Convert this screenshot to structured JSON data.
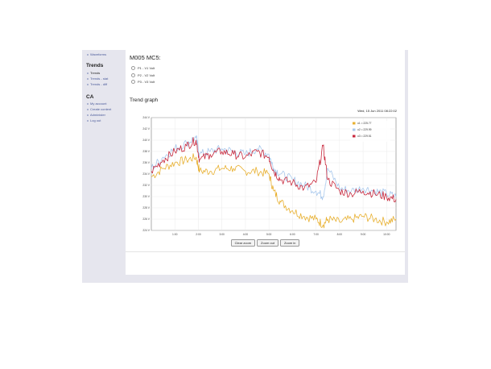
{
  "sidebar": {
    "top_item": "Waveforms",
    "trends_heading": "Trends",
    "trends_items": [
      "Trends",
      "Trends - stat",
      "Trends - diff"
    ],
    "ca_heading": "CA",
    "ca_items": [
      "My account",
      "Create content",
      "Administer",
      "Log out"
    ]
  },
  "page": {
    "title": "M005 MC5:",
    "options": [
      "P1 - V1 Volt",
      "P2 - V2 Volt",
      "P3 - V3 Volt"
    ],
    "section_title": "Trend graph",
    "date_label": "Wed, 15 Jun 2011 08:22:02"
  },
  "buttons": {
    "clear_zoom": "Clear zoom",
    "zoom_out": "Zoom out",
    "zoom_in": "Zoom in"
  },
  "colors": {
    "u1": "#e8b030",
    "u2": "#a8c8ec",
    "u3": "#c8283c"
  },
  "chart_data": {
    "type": "line",
    "legend_position": "top-right",
    "grid": true,
    "xlabel": "",
    "ylabel": "",
    "x_ticks": [
      "1:00",
      "2:00",
      "3:00",
      "4:00",
      "5:00",
      "6:00",
      "7:00",
      "8:00",
      "9:00",
      "10:00"
    ],
    "y_ticks": [
      "224 V",
      "226 V",
      "228 V",
      "230 V",
      "232 V",
      "234 V",
      "236 V",
      "238 V",
      "240 V",
      "242 V",
      "244 V"
    ],
    "xlim": [
      0,
      10.4
    ],
    "ylim": [
      224,
      244
    ],
    "x": [
      0,
      0.5,
      1,
      1.5,
      1.9,
      2.05,
      2.5,
      3,
      3.5,
      4,
      4.5,
      5,
      5.2,
      5.5,
      6,
      6.5,
      7,
      7.3,
      7.5,
      8,
      8.5,
      9,
      9.5,
      10,
      10.4
    ],
    "series": [
      {
        "name": "u1 = 225.77",
        "values": [
          233.5,
          235,
          236,
          236.5,
          237,
          234.5,
          234.5,
          235,
          235,
          234.5,
          234.5,
          234,
          231,
          229,
          227.5,
          226.5,
          226,
          225,
          226,
          225.5,
          226,
          226.5,
          226,
          225.5,
          226
        ]
      },
      {
        "name": "u2 = 229.99",
        "values": [
          235,
          237,
          238.5,
          239.5,
          240.5,
          237.5,
          238,
          238.5,
          238,
          237.5,
          238.5,
          237.5,
          235,
          234,
          233,
          232,
          231,
          230,
          235,
          231.5,
          231,
          231.5,
          231,
          230.5,
          230
        ]
      },
      {
        "name": "u3 = 229.51",
        "values": [
          234.5,
          236.5,
          238,
          239,
          240,
          236.5,
          237.5,
          238,
          237.5,
          237,
          238,
          237,
          234.5,
          233,
          232.5,
          231.5,
          232.5,
          239,
          233,
          231,
          230.5,
          231,
          230.5,
          230,
          229.5
        ]
      }
    ]
  }
}
